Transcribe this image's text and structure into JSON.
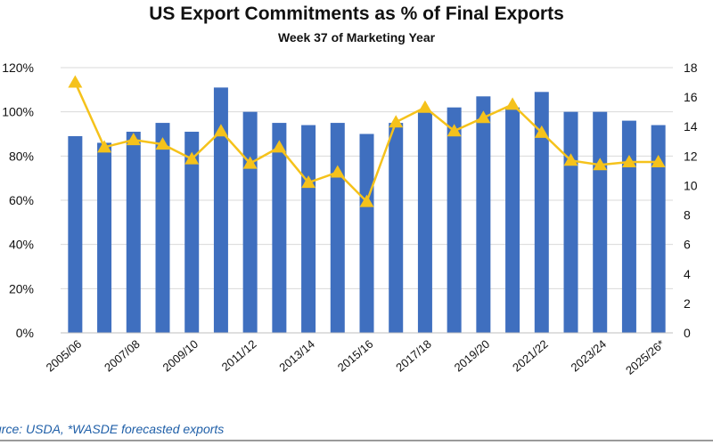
{
  "chart_data": {
    "type": "bar+line",
    "title": "US Export Commitments as % of Final Exports",
    "subtitle": "Week 37 of Marketing Year",
    "source": "urce: USDA, *WASDE forecasted exports",
    "categories": [
      "2005/06",
      "2006/07",
      "2007/08",
      "2008/09",
      "2009/10",
      "2010/11",
      "2011/12",
      "2012/13",
      "2013/14",
      "2014/15",
      "2015/16",
      "2016/17",
      "2017/18",
      "2018/19",
      "2019/20",
      "2020/21",
      "2021/22",
      "2022/23",
      "2023/24",
      "2024/25",
      "2025/26*"
    ],
    "x_tick_labels": [
      "2005/06",
      "2007/08",
      "2009/10",
      "2011/12",
      "2013/14",
      "2015/16",
      "2017/18",
      "2019/20",
      "2021/22",
      "2023/24",
      "2025/26*"
    ],
    "series": [
      {
        "values": [
          89,
          86,
          91,
          95,
          91,
          111,
          100,
          95,
          94,
          95,
          90,
          95,
          100,
          102,
          107,
          102,
          109,
          100,
          100,
          96,
          94
        ],
        "type": "bar",
        "axis": "left",
        "color": "#3f6fbf"
      },
      {
        "values": [
          17.0,
          12.6,
          13.1,
          12.8,
          11.8,
          13.7,
          11.5,
          12.6,
          10.2,
          10.9,
          8.9,
          14.3,
          15.3,
          13.7,
          14.6,
          15.5,
          13.6,
          11.7,
          11.4,
          11.6,
          11.6
        ],
        "type": "line",
        "axis": "right",
        "color": "#f5c21b",
        "marker": "triangle"
      }
    ],
    "y_left": {
      "ylim": [
        0,
        120
      ],
      "ticks": [
        "0%",
        "20%",
        "40%",
        "60%",
        "80%",
        "100%",
        "120%"
      ]
    },
    "y_right": {
      "ylim": [
        0,
        18
      ],
      "ticks": [
        "0",
        "2",
        "4",
        "6",
        "8",
        "10",
        "12",
        "14",
        "16",
        "18"
      ]
    },
    "grid": true,
    "legend": "none"
  }
}
